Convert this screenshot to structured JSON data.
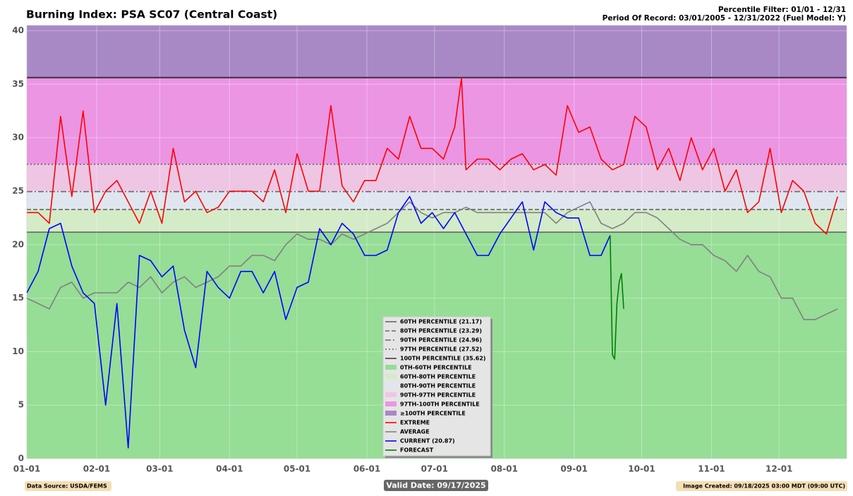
{
  "chart_data": {
    "type": "line",
    "title": "Burning Index: PSA SC07 (Central Coast)",
    "subtitle": [
      "Percentile Filter: 01/01 - 12/31",
      "Period Of Record: 03/01/2005 - 12/31/2022 (Fuel Model: Y)"
    ],
    "xlim": [
      0,
      364
    ],
    "ylim": [
      0,
      40.5
    ],
    "yticks": [
      0,
      5,
      10,
      15,
      20,
      25,
      30,
      35,
      40
    ],
    "xticks": [
      {
        "value": 0,
        "label": "01-01"
      },
      {
        "value": 31,
        "label": "02-01"
      },
      {
        "value": 59,
        "label": "03-01"
      },
      {
        "value": 90,
        "label": "04-01"
      },
      {
        "value": 120,
        "label": "05-01"
      },
      {
        "value": 151,
        "label": "06-01"
      },
      {
        "value": 181,
        "label": "07-01"
      },
      {
        "value": 212,
        "label": "08-01"
      },
      {
        "value": 243,
        "label": "09-01"
      },
      {
        "value": 273,
        "label": "10-01"
      },
      {
        "value": 304,
        "label": "11-01"
      },
      {
        "value": 334,
        "label": "12-01"
      }
    ],
    "grid": true,
    "thresholds": [
      {
        "name": "60TH PERCENTILE (21.17)",
        "value": 21.17,
        "color": "#666666",
        "dash": ""
      },
      {
        "name": "80TH PERCENTILE (23.29)",
        "value": 23.29,
        "color": "#666666",
        "dash": "6,3"
      },
      {
        "name": "90TH PERCENTILE (24.96)",
        "value": 24.96,
        "color": "#666666",
        "dash": "8,3,2,3"
      },
      {
        "name": "97TH PERCENTILE (27.52)",
        "value": 27.52,
        "color": "#666666",
        "dash": "2,3"
      },
      {
        "name": "100TH PERCENTILE (35.62)",
        "value": 35.62,
        "color": "#4a3a50",
        "dash": ""
      }
    ],
    "bands": [
      {
        "name": "0TH-60TH PERCENTILE",
        "color": "#96dd96"
      },
      {
        "name": "60TH-80TH PERCENTILE",
        "color": "#d4ebc8"
      },
      {
        "name": "80TH-90TH PERCENTILE",
        "color": "#e0e6ef"
      },
      {
        "name": "90TH-97TH PERCENTILE",
        "color": "#eec6e4"
      },
      {
        "name": "97TH-100TH PERCENTILE",
        "color": "#eb95e3"
      },
      {
        "name": "≥100TH PERCENTILE",
        "color": "#a889c6"
      }
    ],
    "series": [
      {
        "name": "EXTREME",
        "color": "#ff0000",
        "x": [
          0,
          5,
          10,
          15,
          20,
          25,
          30,
          35,
          40,
          45,
          50,
          55,
          60,
          65,
          70,
          75,
          80,
          85,
          90,
          95,
          100,
          105,
          110,
          115,
          120,
          125,
          130,
          135,
          140,
          145,
          150,
          155,
          160,
          165,
          170,
          175,
          180,
          185,
          190,
          193,
          195,
          200,
          205,
          210,
          215,
          220,
          225,
          230,
          235,
          240,
          245,
          250,
          255,
          260,
          265,
          270,
          275,
          280,
          285,
          290,
          295,
          300,
          305,
          310,
          315,
          320,
          325,
          330,
          335,
          340,
          345,
          350,
          355,
          360
        ],
        "values": [
          23,
          23,
          22,
          32,
          24.5,
          32.5,
          23,
          25,
          26,
          24,
          22,
          25,
          22,
          29,
          24,
          25,
          23,
          23.5,
          25,
          25,
          25,
          24,
          27,
          23,
          28.5,
          25,
          25,
          33,
          25.5,
          24,
          26,
          26,
          29,
          28,
          32,
          29,
          29,
          28,
          31,
          35.6,
          27,
          28,
          28,
          27,
          28,
          28.5,
          27,
          27.5,
          26.5,
          33,
          30.5,
          31,
          28,
          27,
          27.5,
          32,
          31,
          27,
          29,
          26,
          30,
          27,
          29,
          25,
          27,
          23,
          24,
          29,
          23,
          26,
          25,
          22,
          21,
          24.5
        ]
      },
      {
        "name": "AVERAGE",
        "color": "#808080",
        "x": [
          0,
          5,
          10,
          15,
          20,
          25,
          30,
          35,
          40,
          45,
          50,
          55,
          60,
          65,
          70,
          75,
          80,
          85,
          90,
          95,
          100,
          105,
          110,
          115,
          120,
          125,
          130,
          135,
          140,
          145,
          150,
          155,
          160,
          165,
          170,
          175,
          180,
          185,
          190,
          195,
          200,
          205,
          210,
          215,
          220,
          225,
          230,
          235,
          240,
          245,
          250,
          255,
          260,
          265,
          270,
          275,
          280,
          285,
          290,
          295,
          300,
          305,
          310,
          315,
          320,
          325,
          330,
          335,
          340,
          345,
          350,
          355,
          360
        ],
        "values": [
          15,
          14.5,
          14,
          16,
          16.5,
          15,
          15.5,
          15.5,
          15.5,
          16.5,
          16,
          17,
          15.5,
          16.5,
          17,
          16,
          16.5,
          17,
          18,
          18,
          19,
          19,
          18.5,
          20,
          21,
          20.5,
          20.5,
          20,
          21,
          20.5,
          21,
          21.5,
          22,
          23,
          24,
          23,
          22.5,
          23,
          23,
          23.5,
          23,
          23,
          23,
          23,
          23,
          23,
          23,
          22,
          23,
          23.5,
          24,
          22,
          21.5,
          22,
          23,
          23,
          22.5,
          21.5,
          20.5,
          20,
          20,
          19,
          18.5,
          17.5,
          19,
          17.5,
          17,
          15,
          15,
          13,
          13,
          13.5,
          14
        ]
      },
      {
        "name": "CURRENT (20.87)",
        "color": "#0000ff",
        "x": [
          0,
          5,
          10,
          15,
          20,
          25,
          30,
          35,
          40,
          45,
          50,
          55,
          60,
          65,
          70,
          75,
          80,
          85,
          90,
          95,
          100,
          105,
          110,
          115,
          120,
          125,
          130,
          135,
          140,
          145,
          150,
          155,
          160,
          165,
          170,
          175,
          180,
          185,
          190,
          195,
          200,
          205,
          210,
          215,
          220,
          225,
          230,
          235,
          240,
          245,
          250,
          255,
          259
        ],
        "values": [
          15.5,
          17.5,
          21.5,
          22,
          18,
          15.5,
          14.5,
          5,
          14.5,
          1,
          19,
          18.5,
          17,
          18,
          12,
          8.5,
          17.5,
          16,
          15,
          17.5,
          17.5,
          15.5,
          17.5,
          13,
          16,
          16.5,
          21.5,
          20,
          22,
          21,
          19,
          19,
          19.5,
          23,
          24.5,
          22,
          23,
          21.5,
          23,
          21,
          19,
          19,
          21,
          22.5,
          24,
          19.5,
          24,
          23,
          22.5,
          22.5,
          19,
          19,
          20.87
        ]
      },
      {
        "name": "FORECAST",
        "color": "#008000",
        "x": [
          259,
          260,
          261,
          262,
          263,
          264,
          265
        ],
        "values": [
          20.87,
          9.7,
          9.3,
          14.5,
          16.5,
          17.3,
          14
        ]
      }
    ],
    "data_source": "Data Source: USDA/FEMS",
    "valid_date": "Valid Date: 09/17/2025",
    "image_created": "Image Created: 09/18/2025 03:00 MDT (09:00 UTC)"
  }
}
